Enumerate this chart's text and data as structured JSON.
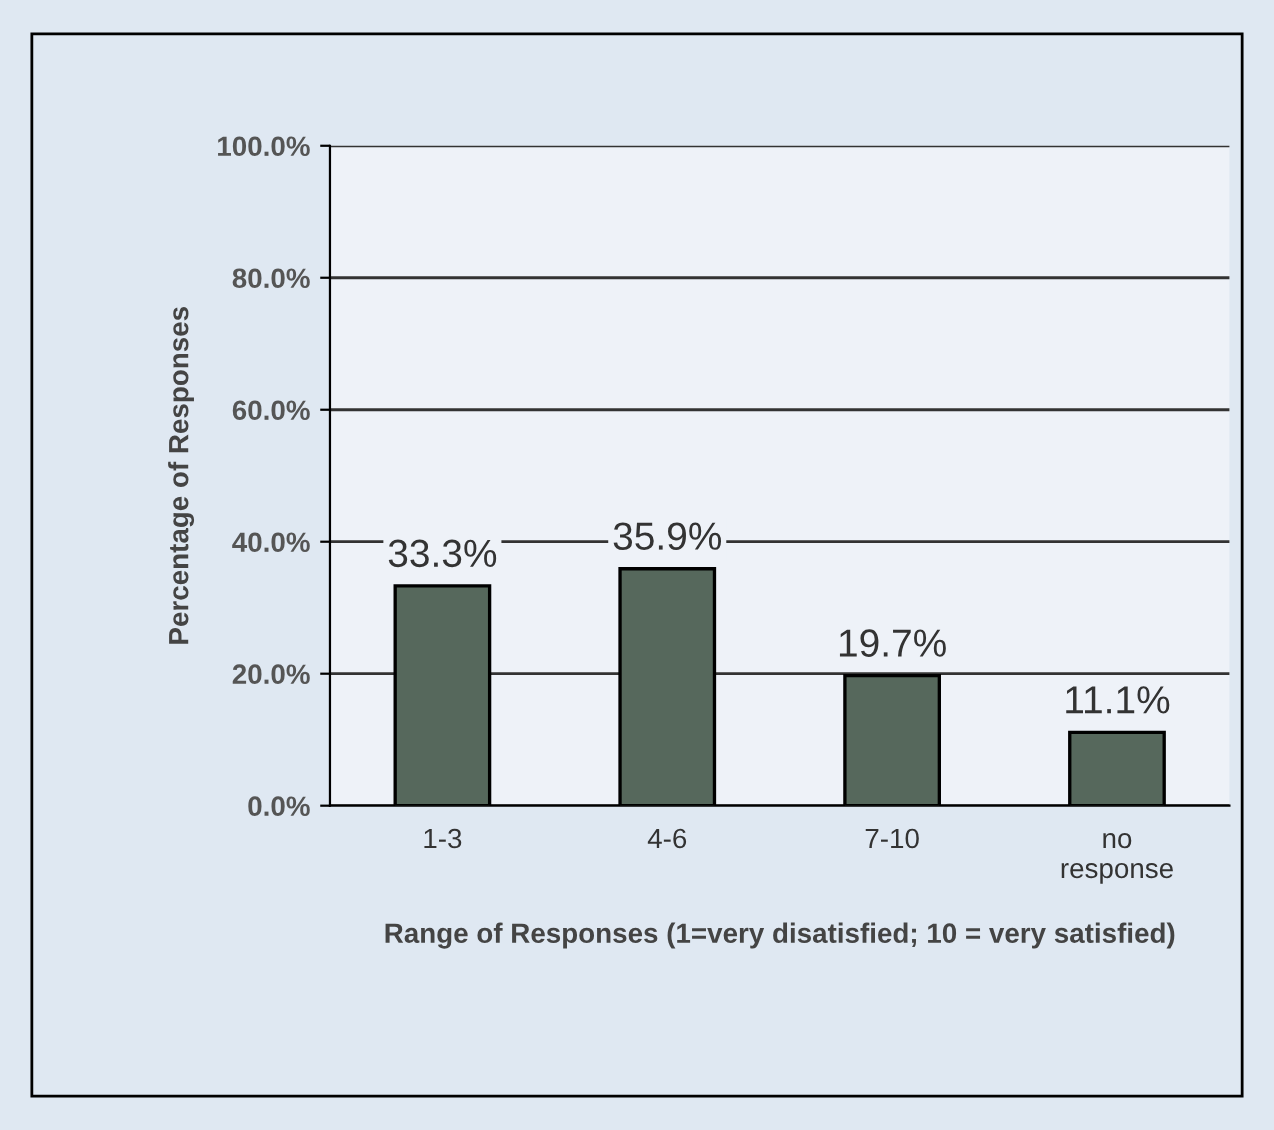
{
  "chart_data": {
    "type": "bar",
    "xlabel": "Range of Responses (1=very disatisfied; 10 = very satisfied)",
    "ylabel": "Percentage of Responses",
    "categories": [
      "1-3",
      "4-6",
      "7-10",
      "no\nresponse"
    ],
    "values": [
      33.3,
      35.9,
      19.7,
      11.1
    ],
    "value_labels": [
      "33.3%",
      "35.9%",
      "19.7%",
      "11.1%"
    ],
    "color": "#56685c",
    "ylim": [
      0,
      100
    ],
    "yticks": [
      {
        "value": 0,
        "label": "0.0%"
      },
      {
        "value": 20,
        "label": "20.0%"
      },
      {
        "value": 40,
        "label": "40.0%"
      },
      {
        "value": 60,
        "label": "60.0%"
      },
      {
        "value": 80,
        "label": "80.0%"
      },
      {
        "value": 100,
        "label": "100.0%"
      }
    ],
    "grid": "y"
  }
}
